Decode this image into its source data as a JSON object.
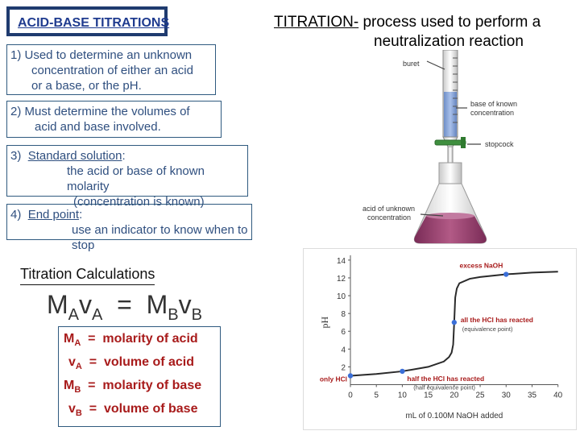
{
  "title": "ACID-BASE TITRATIONS",
  "heading": {
    "term": "TITRATION-",
    "line1_rest": " process used to perform a",
    "line2": "neutralization reaction"
  },
  "points": [
    {
      "lines": [
        "1)  Used to determine an unknown",
        "concentration of either an acid",
        "or a base, or the pH."
      ]
    },
    {
      "lines": [
        "2)  Must determine the volumes of",
        "acid and base involved."
      ]
    },
    {
      "number": "3)",
      "term": "Standard solution",
      "colon": ":",
      "lines": [
        "the acid or base of known molarity",
        "(concentration is known)"
      ]
    },
    {
      "number": "4)",
      "term": "End point",
      "colon": ":",
      "lines": [
        "use an indicator to know when to stop"
      ]
    }
  ],
  "calculations": {
    "title": "Titration Calculations",
    "formula": {
      "left_m": "M",
      "left_sub1": "A",
      "left_v": "v",
      "left_sub2": "A",
      "eq": "=",
      "right_m": "M",
      "right_sub1": "B",
      "right_v": "v",
      "right_sub2": "B"
    },
    "legend": [
      {
        "sym": "M",
        "sub": "A",
        "eq": "=",
        "text": "molarity of acid"
      },
      {
        "sym": "v",
        "sub": "A",
        "eq": "=",
        "text": "volume of acid"
      },
      {
        "sym": "M",
        "sub": "B",
        "eq": "=",
        "text": "molarity of base"
      },
      {
        "sym": "v",
        "sub": "B",
        "eq": "=",
        "text": "volume of base"
      }
    ]
  },
  "apparatus": {
    "buret_label": "buret",
    "base_label": [
      "base of known",
      "concentration"
    ],
    "stopcock_label": "stopcock",
    "acid_label": [
      "acid of unknown",
      "concentration"
    ]
  },
  "chart_data": {
    "type": "line",
    "title": "",
    "xlabel": "mL of 0.100M NaOH added",
    "ylabel": "pH",
    "xlim": [
      0,
      40
    ],
    "ylim": [
      0,
      14
    ],
    "x_ticks": [
      "0",
      "5",
      "10",
      "15",
      "20",
      "25",
      "30",
      "35",
      "40"
    ],
    "y_ticks": [
      "2",
      "4",
      "6",
      "8",
      "10",
      "12",
      "14"
    ],
    "grid": false,
    "series": [
      {
        "x": [
          0,
          5,
          10,
          15,
          18,
          19,
          19.5,
          19.8,
          20,
          20.2,
          20.5,
          21,
          23,
          25,
          30,
          35,
          40
        ],
        "y": [
          1,
          1.2,
          1.5,
          2.0,
          2.6,
          3.1,
          3.6,
          4.5,
          7,
          9.8,
          10.8,
          11.4,
          11.9,
          12.1,
          12.4,
          12.6,
          12.7
        ]
      }
    ],
    "markers": [
      {
        "x": 0,
        "y": 1
      },
      {
        "x": 10,
        "y": 1.5
      },
      {
        "x": 20,
        "y": 7
      },
      {
        "x": 30,
        "y": 12.4
      }
    ],
    "annotations": [
      {
        "text": "excess NaOH",
        "x": 30,
        "y": 12.4
      },
      {
        "text": "all the HCl has reacted",
        "x": 20,
        "y": 7
      },
      {
        "text": "(equivalence point)",
        "x": 20,
        "y": 7
      },
      {
        "text": "half the HCl has reacted",
        "x": 10,
        "y": 1.5
      },
      {
        "text": "(half equivalence point)",
        "x": 10,
        "y": 1.5
      },
      {
        "text": "only HCl",
        "x": 0,
        "y": 1
      }
    ],
    "colors": {
      "line": "#2a2a2a",
      "marker": "#3b6fd8",
      "annotation": "#a81b1b"
    }
  }
}
